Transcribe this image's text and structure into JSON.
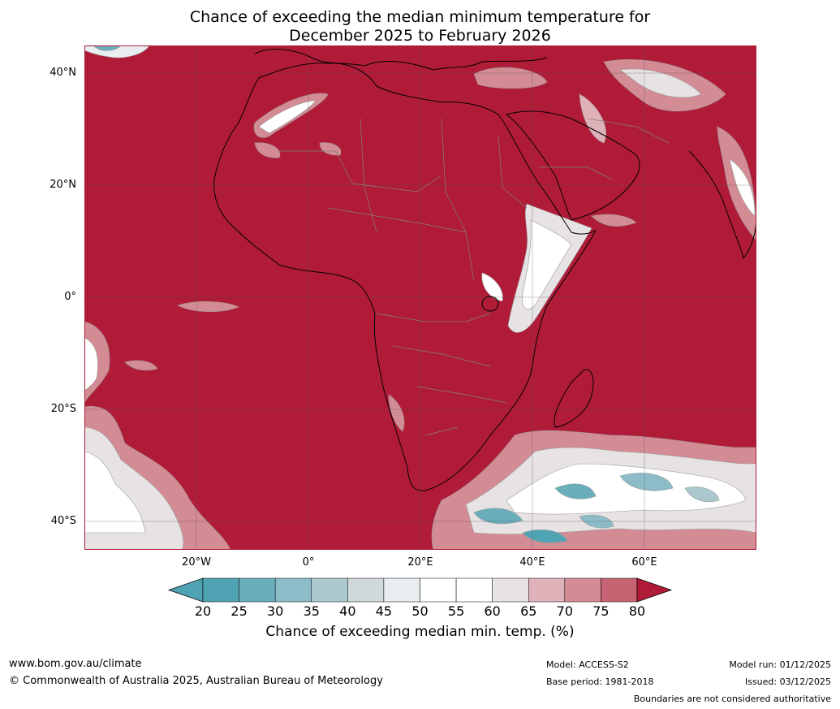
{
  "title_line1": "Chance of exceeding the median minimum temperature for",
  "title_line2": "December 2025 to February 2026",
  "lat_labels": [
    "40°N",
    "20°N",
    "0°",
    "20°S",
    "40°S"
  ],
  "lon_labels": [
    "20°W",
    "0°",
    "20°E",
    "40°E",
    "60°E"
  ],
  "colorbar": {
    "ticks": [
      "20",
      "25",
      "30",
      "35",
      "40",
      "45",
      "50",
      "55",
      "60",
      "65",
      "70",
      "75",
      "80"
    ],
    "colors": [
      "#4fa3b3",
      "#6aaebc",
      "#8bbcc8",
      "#aac8cd",
      "#cfd8db",
      "#e8edf0",
      "#ffffff",
      "#ffffff",
      "#e7e2e4",
      "#dfb2b9",
      "#d38b94",
      "#c76473",
      "#bb4557"
    ],
    "low_color": "#4fa3b3",
    "high_color": "#b01c38",
    "label": "Chance of exceeding median min. temp. (%)"
  },
  "footer": {
    "url": "www.bom.gov.au/climate",
    "copyright": "© Commonwealth of Australia 2025, Australian Bureau of Meteorology",
    "model": "Model: ACCESS-S2",
    "base_period": "Base period: 1981-2018",
    "model_run": "Model run: 01/12/2025",
    "issued": "Issued: 03/12/2025",
    "disclaimer": "Boundaries are not considered authoritative"
  },
  "colors": {
    "dominant": "#b01c38",
    "land_outline": "#000000",
    "border": "#808080"
  }
}
